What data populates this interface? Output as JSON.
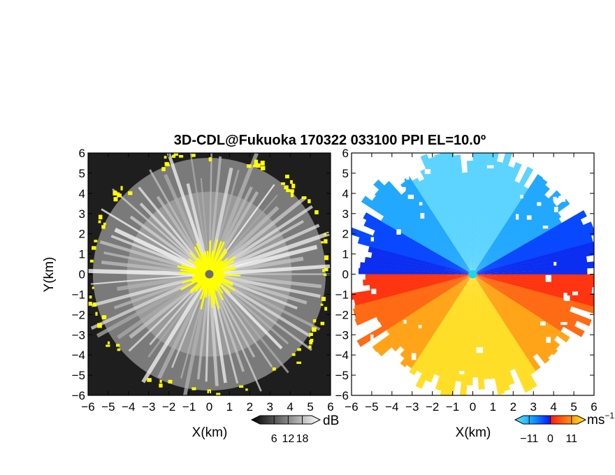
{
  "chart_data": [
    {
      "type": "heatmap",
      "title": "3D-CDL@Fukuoka 170322 033100 PPI EL=10.0º",
      "xlabel": "X(km)",
      "ylabel": "Y(km)",
      "xlim": [
        -6,
        6
      ],
      "ylim": [
        -6,
        6
      ],
      "x_ticks": [
        "−6",
        "−5",
        "−4",
        "−3",
        "−2",
        "−1",
        "0",
        "1",
        "2",
        "3",
        "4",
        "5",
        "6"
      ],
      "y_ticks": [
        "6",
        "5",
        "4",
        "3",
        "2",
        "1",
        "0",
        "−1",
        "−2",
        "−3",
        "−4",
        "−5",
        "−6"
      ],
      "colorbar": {
        "unit": "dB",
        "ticks": [
          "6",
          "12",
          "18"
        ],
        "tick_values": [
          6,
          12,
          18
        ],
        "range": [
          0,
          22
        ],
        "colormap": "grayscale",
        "highlight_color": "#ffff00"
      },
      "grid": false
    },
    {
      "type": "heatmap",
      "xlabel": "X(km)",
      "xlim": [
        -6,
        6
      ],
      "ylim": [
        -6,
        6
      ],
      "x_ticks": [
        "−6",
        "−5",
        "−4",
        "−3",
        "−2",
        "−1",
        "0",
        "1",
        "2",
        "3",
        "4",
        "5",
        "6"
      ],
      "y_ticks": [
        "6",
        "5",
        "4",
        "3",
        "2",
        "1",
        "0",
        "−1",
        "−2",
        "−3",
        "−4",
        "−5",
        "−6"
      ],
      "colorbar": {
        "unit": "ms",
        "unit_exponent": "−1",
        "ticks": [
          "−11",
          "0",
          "11"
        ],
        "tick_values": [
          -11,
          0,
          11
        ],
        "range": [
          -14,
          14
        ],
        "colormap": "blue-red-yellow"
      },
      "grid": false
    }
  ],
  "colors": {
    "radar_center": "#6e6e6e",
    "doppler_center": "#18d8e8",
    "negative_velocity": "#0c3cff",
    "positive_velocity": "#ff3a10",
    "far_positive": "#ffe020",
    "far_negative": "#60d8ff"
  }
}
